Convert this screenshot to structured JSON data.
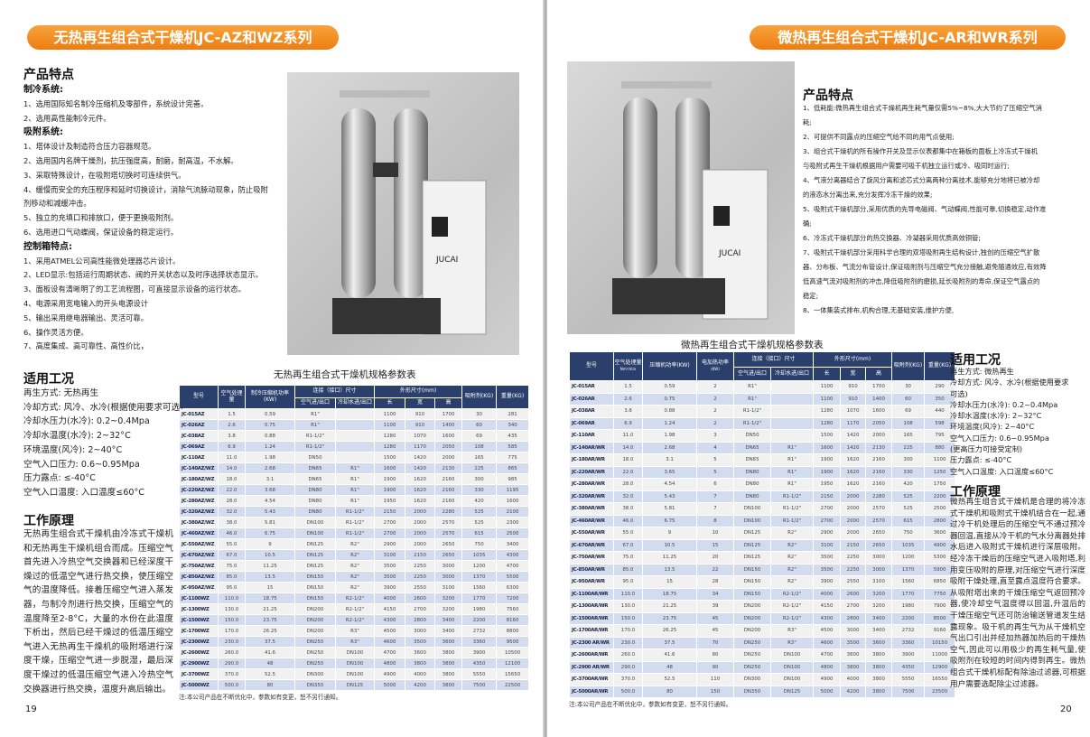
{
  "left": {
    "banner": "无热再生组合式干燥机JC-AZ和WZ系列",
    "features": {
      "heading": "产品特点",
      "groups": [
        {
          "title": "制冷系统:",
          "items": [
            "1、选用国际知名制冷压缩机及零部件，系统设计完善。",
            "2、选用高性能制冷元件。"
          ]
        },
        {
          "title": "吸附系统:",
          "items": [
            "1、塔体设计及制造符合压力容器规范。",
            "2、选用国内名牌干燥剂，抗压强度高，耐磨，耐高温，不水解。",
            "3、采取特殊设计，在吸附塔切换时可连续供气。",
            "4、缓慢而安全的充压程序和延时切换设计，消除气流脉动现象，防止吸附",
            "剂移动和减缓冲击。",
            "5、独立的充填口和排放口，便于更换吸附剂。",
            "6、选用进口气动蝶阀，保证设备的稳定运行。"
          ]
        },
        {
          "title": "控制箱特点:",
          "items": [
            "1、采用ATMEL公司高性能微处理器芯片设计。",
            "2、LED显示:包括运行周期状态、阀的开关状态以及时序选择状态显示。",
            "3、面板设有清晰明了的工艺流程图，可直接显示设备的运行状态。",
            "4、电源采用宽电输入的开头电源设计",
            "5、输出采用继电器输出、灵活可靠。",
            "6、操作灵活方便。",
            "7、高度集成、高可靠性、高性价比，"
          ]
        }
      ]
    },
    "conditions": {
      "heading": "适用工况",
      "items": [
        "再生方式: 无热再生",
        "冷却方式: 风冷、水冷(根据使用要求可选)",
        "冷却水压力(水冷): 0.2~0.4Mpa",
        "冷却水温度(水冷): 2~32°C",
        "环境温度(风冷): 2~40°C",
        "空气入口压力: 0.6~0.95Mpa",
        "压力露点: ≤-40°C",
        "空气入口温度: 入口温度≤60°C"
      ]
    },
    "principle": {
      "heading": "工作原理",
      "text": "无热再生组合式干燥机由冷冻式干燥机和无热再生干燥机组合而成。压缩空气首先进入冷热空气交换器和已经深度干燥过的低温空气进行热交换，使压缩空气的温度降低。接着压缩空气进入蒸发器，与制冷剂进行热交换，压缩空气的温度降至2-8°C，大量的水份在此温度下析出，然后已经干燥过的低温压缩空气进入无热再生干燥机的吸附塔进行深度干燥，压缩空气进一步脱湿，最后深度干燥过的低温压缩空气进入冷热空气交换器进行热交换，温度升高后输出。"
    },
    "photo_brand": "JUCAI",
    "table": {
      "title": "无热再生组合式干燥机规格参数表",
      "headers": {
        "model": "型号",
        "air": "空气处理量",
        "power": "制冷压缩机功率(KW)",
        "conn": "连接（接口）尺寸",
        "air_io": "空气进/出口",
        "water_io": "冷却水进/出口",
        "dims": "外形尺寸(mm)",
        "l": "长",
        "w": "宽",
        "h": "高",
        "adsorbent": "吸附剂(KG)",
        "weight": "重量(KG)"
      },
      "rows": [
        [
          "JC-015AZ",
          "1.5",
          "0.59",
          "R1\"",
          "",
          "1100",
          "910",
          "1700",
          "30",
          "281"
        ],
        [
          "JC-026AZ",
          "2.6",
          "0.75",
          "R1\"",
          "",
          "1100",
          "910",
          "1400",
          "60",
          "340"
        ],
        [
          "JC-038AZ",
          "3.8",
          "0.88",
          "R1-1/2\"",
          "",
          "1280",
          "1070",
          "1600",
          "69",
          "435"
        ],
        [
          "JC-069AZ",
          "6.9",
          "1.24",
          "R1-1/2\"",
          "",
          "1280",
          "1170",
          "2050",
          "108",
          "585"
        ],
        [
          "JC-110AZ",
          "11.0",
          "1.98",
          "DN50",
          "",
          "1500",
          "1420",
          "2000",
          "165",
          "775"
        ],
        [
          "JC-140AZ/WZ",
          "14.0",
          "2.68",
          "DN65",
          "R1\"",
          "1600",
          "1420",
          "2130",
          "225",
          "865"
        ],
        [
          "JC-180AZ/WZ",
          "18.0",
          "3.1",
          "DN65",
          "R1\"",
          "1900",
          "1620",
          "2160",
          "300",
          "985"
        ],
        [
          "JC-220AZ/WZ",
          "22.0",
          "3.68",
          "DN80",
          "R1\"",
          "1900",
          "1620",
          "2160",
          "330",
          "1195"
        ],
        [
          "JC-280AZ/WZ",
          "28.0",
          "4.54",
          "DN80",
          "R1\"",
          "1950",
          "1620",
          "2160",
          "420",
          "1600"
        ],
        [
          "JC-320AZ/WZ",
          "32.0",
          "5.43",
          "DN80",
          "R1-1/2\"",
          "2150",
          "2000",
          "2280",
          "525",
          "2100"
        ],
        [
          "JC-380AZ/WZ",
          "38.0",
          "5.81",
          "DN100",
          "R1-1/2\"",
          "2700",
          "2000",
          "2570",
          "525",
          "2300"
        ],
        [
          "JC-460AZ/WZ",
          "46.0",
          "6.75",
          "DN100",
          "R1-1/2\"",
          "2700",
          "2000",
          "2570",
          "615",
          "2500"
        ],
        [
          "JC-550AZ/WZ",
          "55.0",
          "9",
          "DN125",
          "R2\"",
          "2900",
          "2000",
          "2650",
          "750",
          "3400"
        ],
        [
          "JC-670AZ/WZ",
          "67.0",
          "10.5",
          "DN125",
          "R2\"",
          "3100",
          "2150",
          "2650",
          "1035",
          "4300"
        ],
        [
          "JC-750AZ/WZ",
          "75.0",
          "11.25",
          "DN125",
          "R2\"",
          "3500",
          "2250",
          "3000",
          "1200",
          "4700"
        ],
        [
          "JC-850AZ/WZ",
          "85.0",
          "13.5",
          "DN150",
          "R2\"",
          "3500",
          "2250",
          "3000",
          "1370",
          "5500"
        ],
        [
          "JC-950AZ/WZ",
          "95.0",
          "15",
          "DN150",
          "R2\"",
          "3900",
          "2550",
          "3100",
          "1560",
          "6300"
        ],
        [
          "JC-1100WZ",
          "110.0",
          "18.75",
          "DN150",
          "R2-1/2\"",
          "4000",
          "2600",
          "3200",
          "1770",
          "7200"
        ],
        [
          "JC-1300WZ",
          "130.0",
          "21.25",
          "DN200",
          "R2-1/2\"",
          "4150",
          "2700",
          "3200",
          "1980",
          "7560"
        ],
        [
          "JC-1500WZ",
          "150.0",
          "23.75",
          "DN200",
          "R2-1/2\"",
          "4300",
          "2800",
          "3400",
          "2200",
          "8160"
        ],
        [
          "JC-1700WZ",
          "170.0",
          "26.25",
          "DN200",
          "R3\"",
          "4500",
          "3000",
          "3400",
          "2732",
          "8800"
        ],
        [
          "JC-2300WZ",
          "230.0",
          "37.5",
          "DN250",
          "R3\"",
          "4600",
          "3500",
          "3600",
          "3360",
          "9500"
        ],
        [
          "JC-2600WZ",
          "260.0",
          "41.6",
          "DN250",
          "DN100",
          "4700",
          "3600",
          "3800",
          "3900",
          "10500"
        ],
        [
          "JC-2900WZ",
          "290.0",
          "48",
          "DN250",
          "DN100",
          "4800",
          "3800",
          "3800",
          "4350",
          "12100"
        ],
        [
          "JC-3700WZ",
          "370.0",
          "52.5",
          "DN300",
          "DN100",
          "4900",
          "4000",
          "3800",
          "5550",
          "15650"
        ],
        [
          "JC-5000WZ",
          "500.0",
          "80",
          "DN350",
          "DN125",
          "5000",
          "4200",
          "3800",
          "7500",
          "22500"
        ]
      ],
      "note": "注:本公司产品在不断优化中，参数如有变更，恕不另行通知。"
    },
    "page_number": "19"
  },
  "right": {
    "banner": "微热再生组合式干燥机JC-AR和WR系列",
    "features": {
      "heading": "产品特点",
      "items": [
        "1、低耗能:微热再生组合式干燥机再生耗气量仅需5%~8%,大大节约了压缩空气消",
        "耗;",
        "2、可提供不同露点的压缩空气给不同的用气点使用;",
        "3、组合式干燥机的所有操作开关及显示仪表都集中在箱板的面板上冷冻式干燥机",
        "与吸附式再生干燥机根据用户需要可吸干机独立运行或冷、吸同时运行;",
        "4、气液分离器结合了旋风分离和滤芯式分离两种分离技术,能够充分地将已被冷却",
        "的液态水分离出来,充分发挥冷冻干燥的效果;",
        "5、吸附式干燥机部分,采用优质的先导电磁阀、气动蝶阀,性能可靠,切换稳定,动作准",
        "确;",
        "6、冷冻式干燥机部分的热交换器、冷凝器采用优质高效铜管;",
        "7、吸附式干燥机部分采用科学合理的双塔吸附再生结构设计,独创的压缩空气扩散",
        "器、分布板、气流分布管设计,保证吸附剂与压缩空气充分接触,避免随通效应,有效降",
        "低高速气流对吸附剂的冲击,降低吸附剂的磨损,延长吸附剂的寿命,保证空气露点的",
        "稳定;",
        "8、一体集装式排布,机构合理,无基础安装,维护方便,"
      ]
    },
    "conditions": {
      "heading": "适用工况",
      "items": [
        "再生方式: 微热再生",
        "冷却方式: 风冷、水冷(根据使用要求",
        "可选)",
        "冷却水压力(水冷): 0.2~0.4Mpa",
        "冷却水温度(水冷): 2~32°C",
        "环境温度(风冷): 2~40°C",
        "空气入口压力: 0.6~0.95Mpa",
        "(更高压力可接受定制)",
        "压力露点: ≤-40°C",
        "空气入口温度: 入口温度≤60°C"
      ]
    },
    "principle": {
      "heading": "工作原理",
      "text": "微热再生组合式干燥机是合理的将冷冻式干燥机和吸附式干燥机结合在一起,通过冷干机处理后的压缩空气不通过预冷器回温,直接从冷干机的气水分离器处排水后进入吸附式干燥机进行深层吸附。经冷冻干燥后的压缩空气进入吸附塔,利用变压吸附的原理,对压缩空气进行深度吸附干燥处理,直至露点温度符合要求。从吸附塔出来的干燥压缩空气返回预冷器,使冷却空气温度得以回温,升温后的干燥压缩空气还可防治输送管道发生结露现象。吸干机的再生气为从干燥机空气出口引出并经加热器加热后的干燥热空气,因此可以用极少的再生耗气量,使吸附剂在较短的时间内得到再生。微热组合式干燥机标配有除油过滤器,可根据用户需要选配除尘过滤器。"
    },
    "photo_brand": "JUCAI",
    "table": {
      "title": "微热再生组合式干燥机规格参数表",
      "headers": {
        "model": "型号",
        "air": "空气处理量",
        "air_unit": "Nm³/min",
        "power": "压缩机功率(KW)",
        "heater": "电加热功率",
        "heater_unit": "(KW)",
        "conn": "连接（接口）尺寸",
        "air_io": "空气进/出口",
        "water_io": "冷却水进/出口",
        "dims": "外形尺寸(mm)",
        "l": "长",
        "w": "宽",
        "h": "高",
        "adsorbent": "吸附剂(KG)",
        "weight": "重量(KG)"
      },
      "rows": [
        [
          "JC-015AR",
          "1.5",
          "0.59",
          "2",
          "R1\"",
          "",
          "1100",
          "910",
          "1700",
          "30",
          "290"
        ],
        [
          "JC-026AR",
          "2.6",
          "0.75",
          "2",
          "R1\"",
          "",
          "1100",
          "910",
          "1400",
          "60",
          "350"
        ],
        [
          "JC-038AR",
          "3.8",
          "0.88",
          "2",
          "R1-1/2\"",
          "",
          "1280",
          "1070",
          "1600",
          "69",
          "440"
        ],
        [
          "JC-069AR",
          "6.9",
          "1.24",
          "2",
          "R1-1/2\"",
          "",
          "1280",
          "1170",
          "2050",
          "108",
          "598"
        ],
        [
          "JC-110AR",
          "11.0",
          "1.98",
          "3",
          "DN50",
          "",
          "1500",
          "1420",
          "2000",
          "165",
          "795"
        ],
        [
          "JC-140AR/WR",
          "14.0",
          "2.68",
          "4",
          "DN65",
          "R1\"",
          "1600",
          "1420",
          "2130",
          "225",
          "880"
        ],
        [
          "JC-180AR/WR",
          "18.0",
          "3.1",
          "5",
          "DN65",
          "R1\"",
          "1900",
          "1620",
          "2160",
          "300",
          "1100"
        ],
        [
          "JC-220AR/WR",
          "22.0",
          "3.65",
          "5",
          "DN80",
          "R1\"",
          "1900",
          "1620",
          "2160",
          "330",
          "1250"
        ],
        [
          "JC-280AR/WR",
          "28.0",
          "4.54",
          "6",
          "DN80",
          "R1\"",
          "1950",
          "1620",
          "2160",
          "420",
          "1750"
        ],
        [
          "JC-320AR/WR",
          "32.0",
          "5.43",
          "7",
          "DN80",
          "R1-1/2\"",
          "2150",
          "2000",
          "2280",
          "525",
          "2200"
        ],
        [
          "JC-380AR/WR",
          "38.0",
          "5.81",
          "7",
          "DN100",
          "R1-1/2\"",
          "2700",
          "2000",
          "2570",
          "525",
          "2500"
        ],
        [
          "JC-460AR/WR",
          "46.0",
          "6.75",
          "8",
          "DN100",
          "R1-1/2\"",
          "2700",
          "2000",
          "2570",
          "615",
          "2800"
        ],
        [
          "JC-550AR/WR",
          "55.0",
          "9",
          "10",
          "DN125",
          "R2\"",
          "2900",
          "2000",
          "2650",
          "750",
          "3600"
        ],
        [
          "JC-670AR/WR",
          "67.0",
          "10.5",
          "15",
          "DN125",
          "R2\"",
          "3100",
          "2150",
          "2650",
          "1035",
          "4900"
        ],
        [
          "JC-750AR/WR",
          "75.0",
          "11.25",
          "20",
          "DN125",
          "R2\"",
          "3500",
          "2250",
          "3000",
          "1200",
          "5300"
        ],
        [
          "JC-850AR/WR",
          "85.0",
          "13.5",
          "22",
          "DN150",
          "R2\"",
          "3500",
          "2250",
          "3000",
          "1370",
          "5900"
        ],
        [
          "JC-950AR/WR",
          "95.0",
          "15",
          "28",
          "DN150",
          "R2\"",
          "3900",
          "2550",
          "3100",
          "1560",
          "6850"
        ],
        [
          "JC-1100AR/WR",
          "110.0",
          "18.75",
          "34",
          "DN150",
          "R2-1/2\"",
          "4000",
          "2600",
          "3200",
          "1770",
          "7750"
        ],
        [
          "JC-1300AR/WR",
          "130.0",
          "21.25",
          "39",
          "DN200",
          "R2-1/2\"",
          "4150",
          "2700",
          "3200",
          "1980",
          "7900"
        ],
        [
          "JC-1500AR/WR",
          "150.0",
          "23.75",
          "45",
          "DN200",
          "R2-1/2\"",
          "4300",
          "2800",
          "3400",
          "2200",
          "8500"
        ],
        [
          "JC-1700AR/WR",
          "170.0",
          "26.25",
          "45",
          "DN200",
          "R3\"",
          "4500",
          "3000",
          "3400",
          "2732",
          "9160"
        ],
        [
          "JC-2300 AR/WR",
          "230.0",
          "37.5",
          "70",
          "DN250",
          "R3\"",
          "4600",
          "3500",
          "3600",
          "3360",
          "10150"
        ],
        [
          "JC-2600AR/WR",
          "260.0",
          "41.6",
          "80",
          "DN250",
          "DN100",
          "4700",
          "3600",
          "3800",
          "3900",
          "11000"
        ],
        [
          "JC-2900 AR/WR",
          "290.0",
          "48",
          "90",
          "DN250",
          "DN100",
          "4800",
          "3800",
          "3800",
          "4350",
          "12900"
        ],
        [
          "JC-3700AR/WR",
          "370.0",
          "52.5",
          "110",
          "DN300",
          "DN100",
          "4900",
          "4000",
          "3800",
          "5550",
          "16550"
        ],
        [
          "JC-5000AR/WR",
          "500.0",
          "80",
          "150",
          "DN350",
          "DN125",
          "5000",
          "4200",
          "3800",
          "7500",
          "23500"
        ]
      ],
      "note": "注:本公司产品在不断优化中，参数如有变更，恕不另行通知。"
    },
    "page_number": "20"
  },
  "colors": {
    "banner": "#ee7d12",
    "table_header": "#2b3f6d",
    "row_alt": "#d3dcef",
    "row": "#f1f1f1"
  }
}
